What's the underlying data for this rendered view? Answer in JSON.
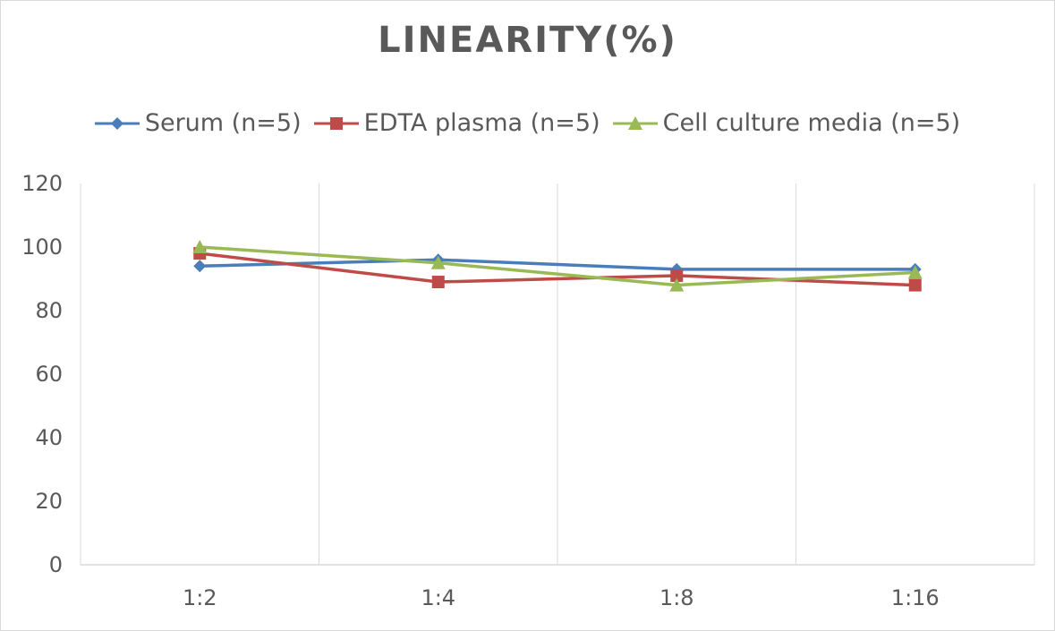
{
  "chart_data": {
    "type": "line",
    "title": "LINEARITY(%)",
    "categories": [
      "1:2",
      "1:4",
      "1:8",
      "1:16"
    ],
    "ylim": [
      0,
      120
    ],
    "yticks": [
      0,
      20,
      40,
      60,
      80,
      100,
      120
    ],
    "grid": "vertical",
    "legend": "top",
    "series": [
      {
        "name": "Serum (n=5)",
        "color": "#4a7ebb",
        "marker": "diamond",
        "values": [
          94,
          96,
          93,
          93
        ]
      },
      {
        "name": "EDTA plasma (n=5)",
        "color": "#be4b48",
        "marker": "square",
        "values": [
          98,
          89,
          91,
          88
        ]
      },
      {
        "name": "Cell culture media (n=5)",
        "color": "#98b954",
        "marker": "triangle",
        "values": [
          100,
          95,
          88,
          92
        ]
      }
    ]
  }
}
